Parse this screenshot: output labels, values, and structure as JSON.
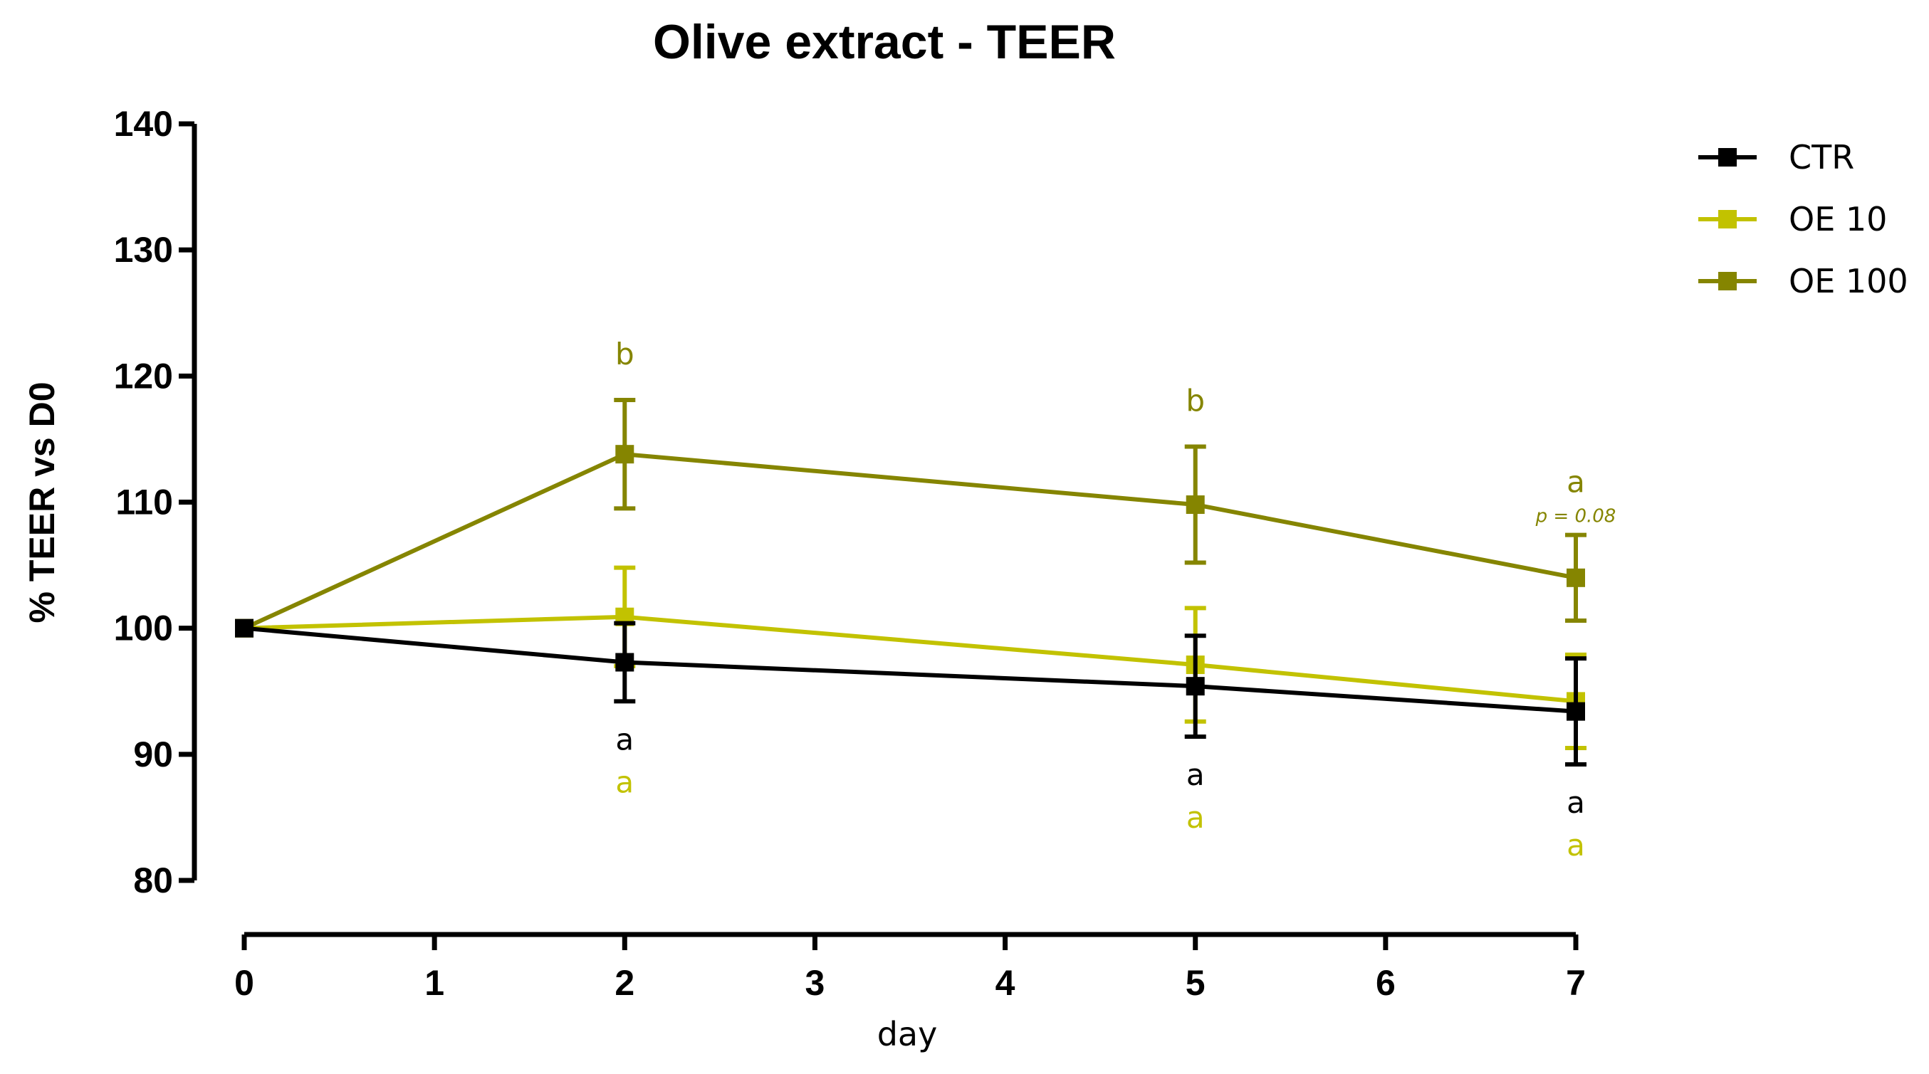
{
  "chart_data": {
    "type": "line",
    "title": "Olive extract - TEER",
    "xlabel": "day",
    "ylabel": "% TEER vs D0",
    "xlim": [
      0,
      7
    ],
    "ylim": [
      80,
      140
    ],
    "x_ticks": [
      "0",
      "1",
      "2",
      "3",
      "4",
      "5",
      "6",
      "7"
    ],
    "y_ticks": [
      "80",
      "90",
      "100",
      "110",
      "120",
      "130",
      "140"
    ],
    "x": [
      0,
      2,
      5,
      7
    ],
    "series": [
      {
        "name": "OE 100",
        "color": "#858500",
        "values": [
          100,
          113.8,
          109.8,
          104.0
        ],
        "err": [
          0,
          4.3,
          4.6,
          3.4
        ]
      },
      {
        "name": "OE 10",
        "color": "#C2C200",
        "values": [
          100,
          100.9,
          97.1,
          94.2
        ],
        "err": [
          0,
          3.9,
          4.5,
          3.7
        ]
      },
      {
        "name": "CTR",
        "color": "#000000",
        "values": [
          100,
          97.3,
          95.4,
          93.4
        ],
        "err": [
          0,
          3.1,
          4.0,
          4.2
        ]
      }
    ],
    "legend": {
      "position": "top-right",
      "order": [
        "CTR",
        "OE 10",
        "OE 100"
      ]
    },
    "annotations": [
      {
        "x": 2,
        "series": "OE 100",
        "text": "b",
        "place": "above"
      },
      {
        "x": 5,
        "series": "OE 100",
        "text": "b",
        "place": "above"
      },
      {
        "x": 7,
        "series": "OE 100",
        "text": "a",
        "place": "above",
        "note": "p = 0.08"
      },
      {
        "x": 2,
        "series": "CTR",
        "text": "a",
        "place": "below",
        "row": 0
      },
      {
        "x": 2,
        "series": "OE 10",
        "text": "a",
        "place": "below",
        "row": 1
      },
      {
        "x": 5,
        "series": "CTR",
        "text": "a",
        "place": "below",
        "row": 0
      },
      {
        "x": 5,
        "series": "OE 10",
        "text": "a",
        "place": "below",
        "row": 1
      },
      {
        "x": 7,
        "series": "CTR",
        "text": "a",
        "place": "below",
        "row": 0
      },
      {
        "x": 7,
        "series": "OE 10",
        "text": "a",
        "place": "below",
        "row": 1
      }
    ]
  }
}
